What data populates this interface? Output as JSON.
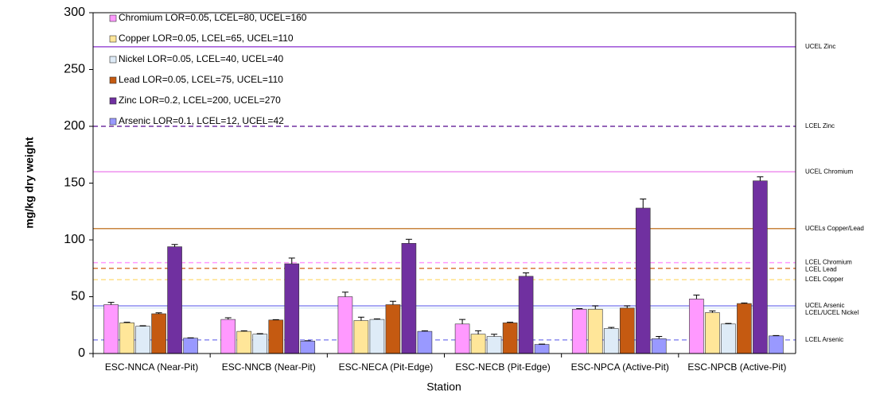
{
  "chart_data": {
    "type": "bar",
    "y_label": "mg/kg dry weight",
    "x_label": "Station",
    "categories": [
      "ESC-NNCA (Near-Pit)",
      "ESC-NNCB (Near-Pit)",
      "ESC-NECA (Pit-Edge)",
      "ESC-NECB (Pit-Edge)",
      "ESC-NPCA (Active-Pit)",
      "ESC-NPCB (Active-Pit)"
    ],
    "series": [
      {
        "name": "Chromium LOR=0.05, LCEL=80, UCEL=160",
        "color": "#ff99ff",
        "values": [
          43,
          30,
          50,
          26,
          39,
          48
        ],
        "errors": [
          2,
          1.5,
          4,
          4,
          0.5,
          3.5
        ]
      },
      {
        "name": "Copper LOR=0.05, LCEL=65, UCEL=110",
        "color": "#ffe699",
        "values": [
          27,
          19.5,
          29,
          17,
          39,
          36
        ],
        "errors": [
          0.5,
          0.5,
          3,
          3,
          3,
          1.5
        ]
      },
      {
        "name": "Nickel LOR=0.05, LCEL=40, UCEL=40",
        "color": "#deebf7",
        "values": [
          24,
          17,
          30,
          15,
          22,
          26
        ],
        "errors": [
          0.5,
          0.5,
          0.5,
          2,
          1,
          0.5
        ]
      },
      {
        "name": "Lead LOR=0.05, LCEL=75, UCEL=110",
        "color": "#c55a11",
        "values": [
          35,
          29.5,
          43,
          27,
          40,
          44
        ],
        "errors": [
          0.8,
          0.3,
          3,
          0.5,
          2,
          0.5
        ]
      },
      {
        "name": "Zinc LOR=0.2, LCEL=200, UCEL=270",
        "color": "#7030a0",
        "values": [
          94,
          79,
          97,
          68,
          128,
          152
        ],
        "errors": [
          2,
          5,
          3.5,
          3,
          8,
          3.5
        ]
      },
      {
        "name": "Arsenic LOR=0.1, LCEL=12, UCEL=42",
        "color": "#9999ff",
        "values": [
          13.5,
          11,
          19.5,
          8,
          13,
          15.5
        ],
        "errors": [
          0.3,
          0.3,
          0.5,
          0.3,
          2,
          0.3
        ]
      }
    ],
    "reference_lines": [
      {
        "label": "UCEL Zinc",
        "value": 270,
        "color": "#9b4fd6",
        "style": "solid"
      },
      {
        "label": "LCEL Zinc",
        "value": 200,
        "color": "#7030a0",
        "style": "dashed"
      },
      {
        "label": "UCEL Chromium",
        "value": 160,
        "color": "#ee90ee",
        "style": "solid"
      },
      {
        "label": "UCELs Copper/Lead",
        "value": 110,
        "color": "#c8853f",
        "style": "solid"
      },
      {
        "label": "LCEL Chromium",
        "value": 80,
        "color": "#ff99ff",
        "style": "dashed"
      },
      {
        "label": "LCEL Lead",
        "value": 75,
        "color": "#d97a3a",
        "style": "dashed"
      },
      {
        "label": "LCEL Copper",
        "value": 65,
        "color": "#ffe08a",
        "style": "dashed"
      },
      {
        "label": "UCEL Arsenic",
        "value": 42,
        "color": "#8c8cf0",
        "style": "solid"
      },
      {
        "label": "LCEL/UCEL Nickel",
        "value": 40,
        "color": "#deebf7",
        "style": "solid"
      },
      {
        "label": "LCEL Arsenic",
        "value": 12,
        "color": "#8c8cf0",
        "style": "dashed"
      }
    ],
    "ylim": [
      0,
      300
    ],
    "yticks": [
      0,
      50,
      100,
      150,
      200,
      250,
      300
    ]
  }
}
